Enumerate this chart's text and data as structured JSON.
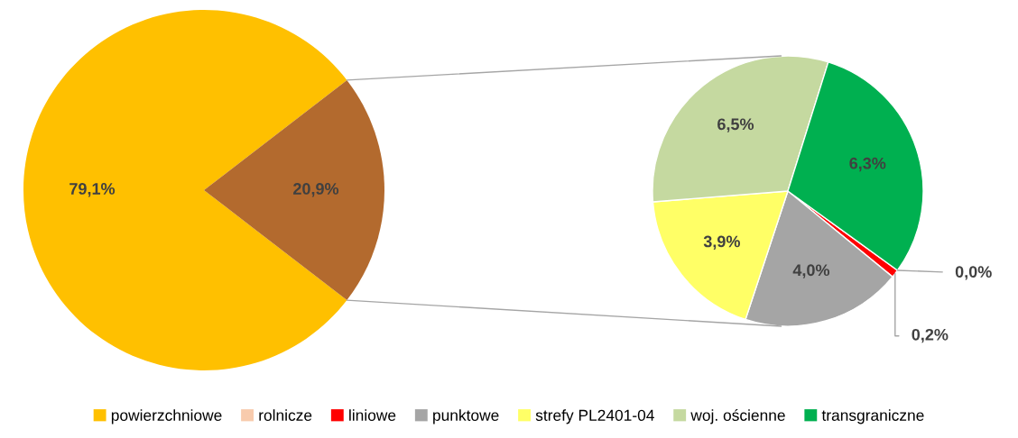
{
  "chart_data": [
    {
      "type": "pie",
      "categories": [
        "powierzchniowe",
        null
      ],
      "values": [
        79.1,
        20.9
      ],
      "colors": [
        "#ffc000",
        "#b36a2e"
      ],
      "value_labels": [
        "79,1%",
        "20,9%"
      ],
      "legend": "bottom"
    },
    {
      "type": "pie",
      "categories": [
        "rolnicze",
        "liniowe",
        "punktowe",
        "strefy PL2401-04",
        "woj. ościenne",
        "transgraniczne"
      ],
      "values": [
        0.0,
        0.2,
        4.0,
        3.9,
        6.5,
        6.3
      ],
      "colors": [
        "#f8cbad",
        "#ff0000",
        "#a5a5a5",
        "#ffff66",
        "#c5d9a0",
        "#00b050"
      ],
      "value_labels": [
        "0,0%",
        "0,2%",
        "4,0%",
        "3,9%",
        "6,5%",
        "6,3%"
      ],
      "legend": "bottom"
    }
  ]
}
